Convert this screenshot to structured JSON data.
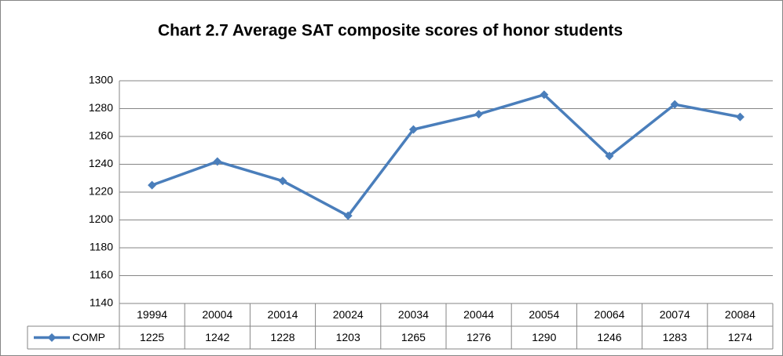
{
  "chart_data": {
    "type": "line",
    "title": "Chart 2.7 Average SAT composite scores of honor students",
    "categories": [
      "19994",
      "20004",
      "20014",
      "20024",
      "20034",
      "20044",
      "20054",
      "20064",
      "20074",
      "20084"
    ],
    "series": [
      {
        "name": "COMP",
        "color": "#4a7ebb",
        "values": [
          1225,
          1242,
          1228,
          1203,
          1265,
          1276,
          1290,
          1246,
          1283,
          1274
        ]
      }
    ],
    "ylim": [
      1140,
      1300
    ],
    "yticks": [
      1140,
      1160,
      1180,
      1200,
      1220,
      1240,
      1260,
      1280,
      1300
    ],
    "grid": true,
    "data_table": true
  }
}
